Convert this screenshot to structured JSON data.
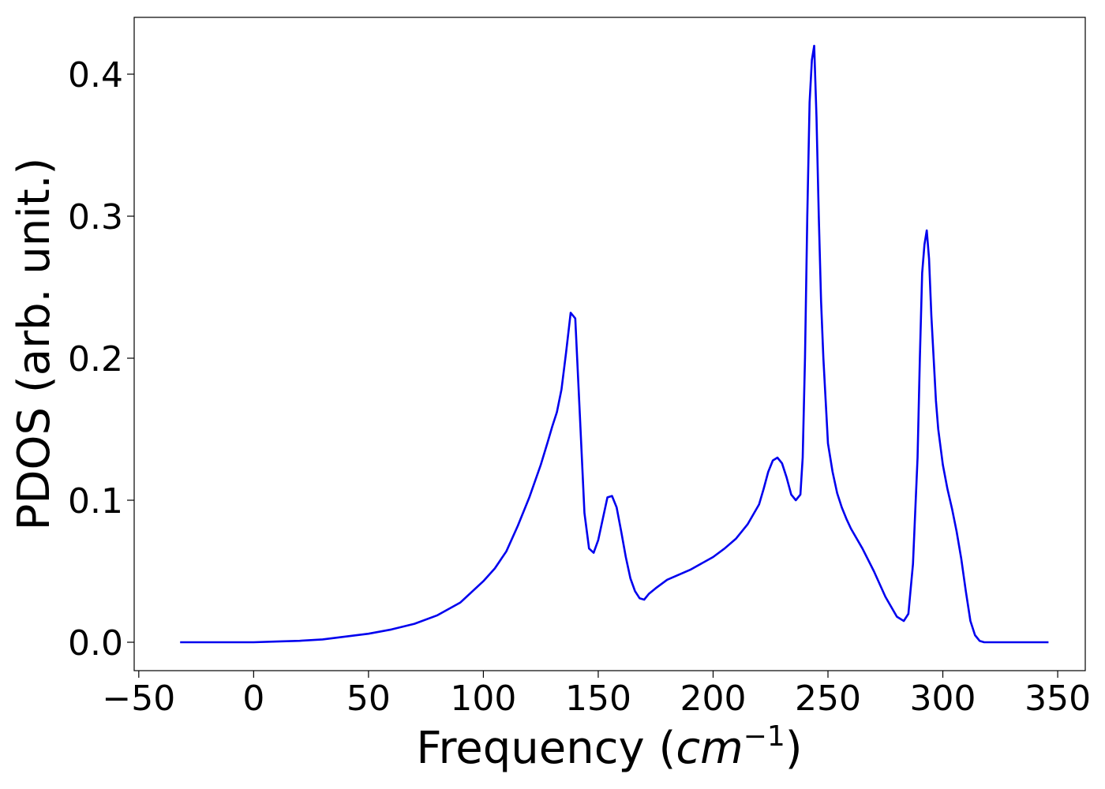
{
  "chart_data": {
    "type": "line",
    "xlabel": "Frequency",
    "xlabel_unit": "cm",
    "xlabel_unit_exp": "−1",
    "ylabel": "PDOS (arb. unit.)",
    "xlim": [
      -52,
      362
    ],
    "ylim": [
      -0.02,
      0.44
    ],
    "grid": false,
    "x_ticks": [
      -50,
      0,
      50,
      100,
      150,
      200,
      250,
      300,
      350
    ],
    "x_tick_labels": [
      "−50",
      "0",
      "50",
      "100",
      "150",
      "200",
      "250",
      "300",
      "350"
    ],
    "y_ticks": [
      0.0,
      0.1,
      0.2,
      0.3,
      0.4
    ],
    "y_tick_labels": [
      "0.0",
      "0.1",
      "0.2",
      "0.3",
      "0.4"
    ],
    "series": [
      {
        "color": "#0000ee",
        "x": [
          -32,
          0,
          10,
          20,
          30,
          40,
          50,
          60,
          70,
          80,
          90,
          100,
          105,
          110,
          115,
          120,
          125,
          128,
          130,
          132,
          134,
          136,
          138,
          140,
          142,
          144,
          146,
          148,
          150,
          152,
          154,
          156,
          158,
          160,
          162,
          164,
          166,
          168,
          170,
          172,
          175,
          180,
          190,
          200,
          205,
          210,
          215,
          220,
          222,
          224,
          226,
          228,
          230,
          232,
          234,
          236,
          238,
          239,
          240,
          241,
          242,
          243,
          244,
          245,
          246,
          247,
          248,
          249,
          250,
          252,
          254,
          256,
          258,
          260,
          265,
          270,
          275,
          280,
          283,
          285,
          287,
          289,
          290,
          291,
          292,
          293,
          294,
          295,
          296,
          297,
          298,
          300,
          302,
          304,
          306,
          308,
          310,
          312,
          314,
          316,
          318,
          320,
          322,
          325,
          330,
          346
        ],
        "y": [
          0.0,
          0.0,
          0.0005,
          0.001,
          0.002,
          0.004,
          0.006,
          0.009,
          0.013,
          0.019,
          0.028,
          0.043,
          0.052,
          0.064,
          0.082,
          0.102,
          0.125,
          0.141,
          0.152,
          0.162,
          0.178,
          0.204,
          0.232,
          0.228,
          0.16,
          0.091,
          0.066,
          0.063,
          0.072,
          0.087,
          0.102,
          0.103,
          0.095,
          0.078,
          0.06,
          0.045,
          0.036,
          0.031,
          0.03,
          0.034,
          0.038,
          0.044,
          0.051,
          0.06,
          0.066,
          0.073,
          0.083,
          0.097,
          0.108,
          0.12,
          0.128,
          0.13,
          0.126,
          0.116,
          0.104,
          0.1,
          0.104,
          0.13,
          0.2,
          0.3,
          0.38,
          0.41,
          0.42,
          0.37,
          0.3,
          0.24,
          0.2,
          0.17,
          0.14,
          0.12,
          0.105,
          0.095,
          0.087,
          0.08,
          0.066,
          0.05,
          0.032,
          0.018,
          0.015,
          0.02,
          0.055,
          0.13,
          0.2,
          0.26,
          0.28,
          0.29,
          0.27,
          0.23,
          0.2,
          0.17,
          0.15,
          0.125,
          0.108,
          0.094,
          0.078,
          0.059,
          0.036,
          0.015,
          0.005,
          0.001,
          0.0,
          0.0,
          0.0,
          0.0,
          0.0,
          0.0
        ]
      }
    ]
  }
}
